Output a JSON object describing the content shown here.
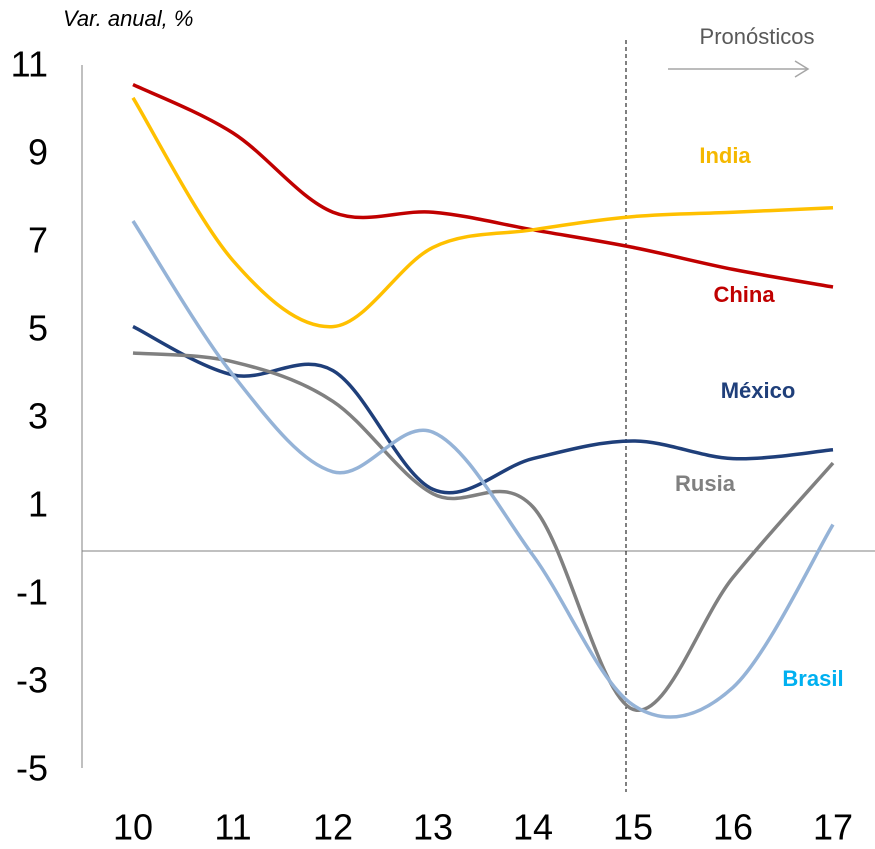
{
  "chart_data": {
    "type": "line",
    "subtitle": "Var. anual, %",
    "annotation": "Pronósticos",
    "categories": [
      "10",
      "11",
      "12",
      "13",
      "14",
      "15",
      "16",
      "17"
    ],
    "ylim": [
      -5,
      11
    ],
    "yticks": [
      -5,
      -3,
      -1,
      1,
      3,
      5,
      7,
      9,
      11
    ],
    "series": [
      {
        "name": "China",
        "color": "#c00000",
        "label_color": "#c00000",
        "values": [
          10.6,
          9.5,
          7.7,
          7.7,
          7.3,
          6.9,
          6.4,
          6.0
        ]
      },
      {
        "name": "India",
        "color": "#ffc000",
        "label_color": "#f5b800",
        "values": [
          10.3,
          6.6,
          5.1,
          6.9,
          7.3,
          7.6,
          7.7,
          7.8
        ]
      },
      {
        "name": "México",
        "color": "#1f3f7a",
        "label_color": "#1f3f7a",
        "values": [
          5.1,
          4.0,
          4.1,
          1.4,
          2.1,
          2.5,
          2.1,
          2.3
        ]
      },
      {
        "name": "Rusia",
        "color": "#808080",
        "label_color": "#808080",
        "values": [
          4.5,
          4.3,
          3.4,
          1.3,
          1.0,
          -3.6,
          -0.6,
          2.0
        ]
      },
      {
        "name": "Brasil",
        "color": "#95b3d7",
        "label_color": "#00b0f0",
        "values": [
          7.5,
          4.0,
          1.8,
          2.7,
          -0.1,
          -3.5,
          -3.1,
          0.6
        ]
      }
    ]
  }
}
